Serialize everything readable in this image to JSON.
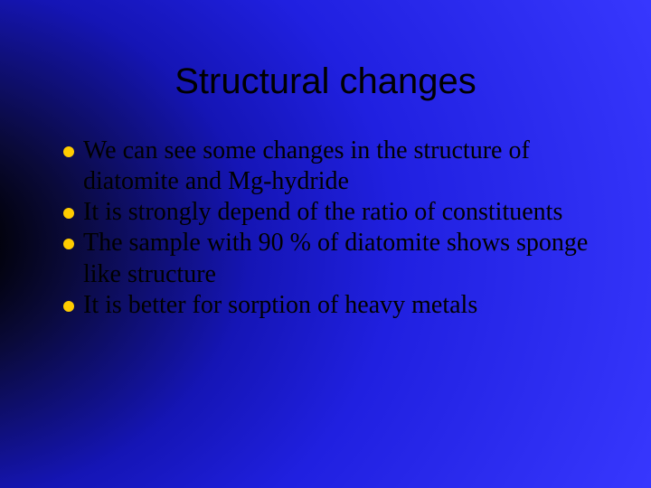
{
  "slide": {
    "title": "Structural changes",
    "bullets": [
      "We can see some changes in the structure of diatomite and Mg-hydride",
      "It is strongly depend of the ratio of constituents",
      "The sample with 90 % of diatomite shows sponge like structure",
      "It is better for sorption of heavy metals"
    ],
    "title_fontsize": 40,
    "body_fontsize": 28,
    "title_font": "Arial",
    "body_font": "Times New Roman",
    "bullet_color": "#ffcc00",
    "text_color": "#000000",
    "background_gradient": {
      "type": "radial",
      "center": "-100px 270px",
      "stops": [
        "#000000",
        "#0a0a3a",
        "#1515b5",
        "#2020e0",
        "#3838ff"
      ]
    }
  }
}
